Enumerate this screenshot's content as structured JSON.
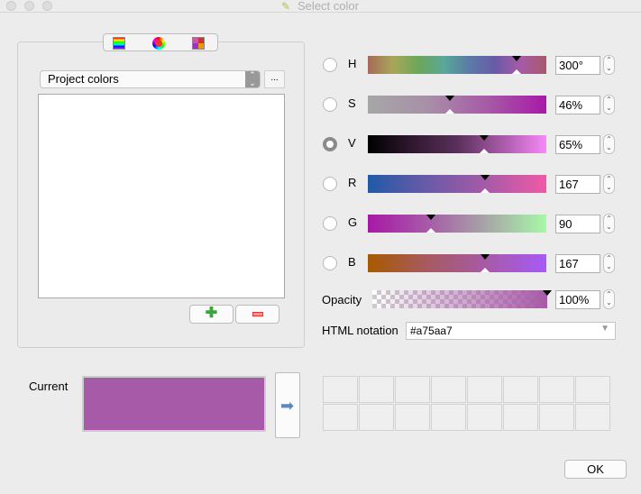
{
  "window": {
    "title": "Select color"
  },
  "tabs": [
    {
      "icon": "color-ramp-icon"
    },
    {
      "icon": "color-wheel-icon"
    },
    {
      "icon": "swatch-grid-icon"
    }
  ],
  "palette": {
    "selected": "Project colors",
    "more_label": "..."
  },
  "channels": [
    {
      "label": "H",
      "value": "300°",
      "fraction": 0.833,
      "checked": false
    },
    {
      "label": "S",
      "value": "46%",
      "fraction": 0.46,
      "checked": false
    },
    {
      "label": "V",
      "value": "65%",
      "fraction": 0.65,
      "checked": true
    },
    {
      "label": "R",
      "value": "167",
      "fraction": 0.655,
      "checked": false
    },
    {
      "label": "G",
      "value": "90",
      "fraction": 0.353,
      "checked": false
    },
    {
      "label": "B",
      "value": "167",
      "fraction": 0.655,
      "checked": false
    }
  ],
  "opacity": {
    "label": "Opacity",
    "value": "100%",
    "fraction": 1.0
  },
  "html": {
    "label": "HTML notation",
    "value": "#a75aa7"
  },
  "current": {
    "label": "Current",
    "color": "#a75aa7"
  },
  "ok_label": "OK"
}
